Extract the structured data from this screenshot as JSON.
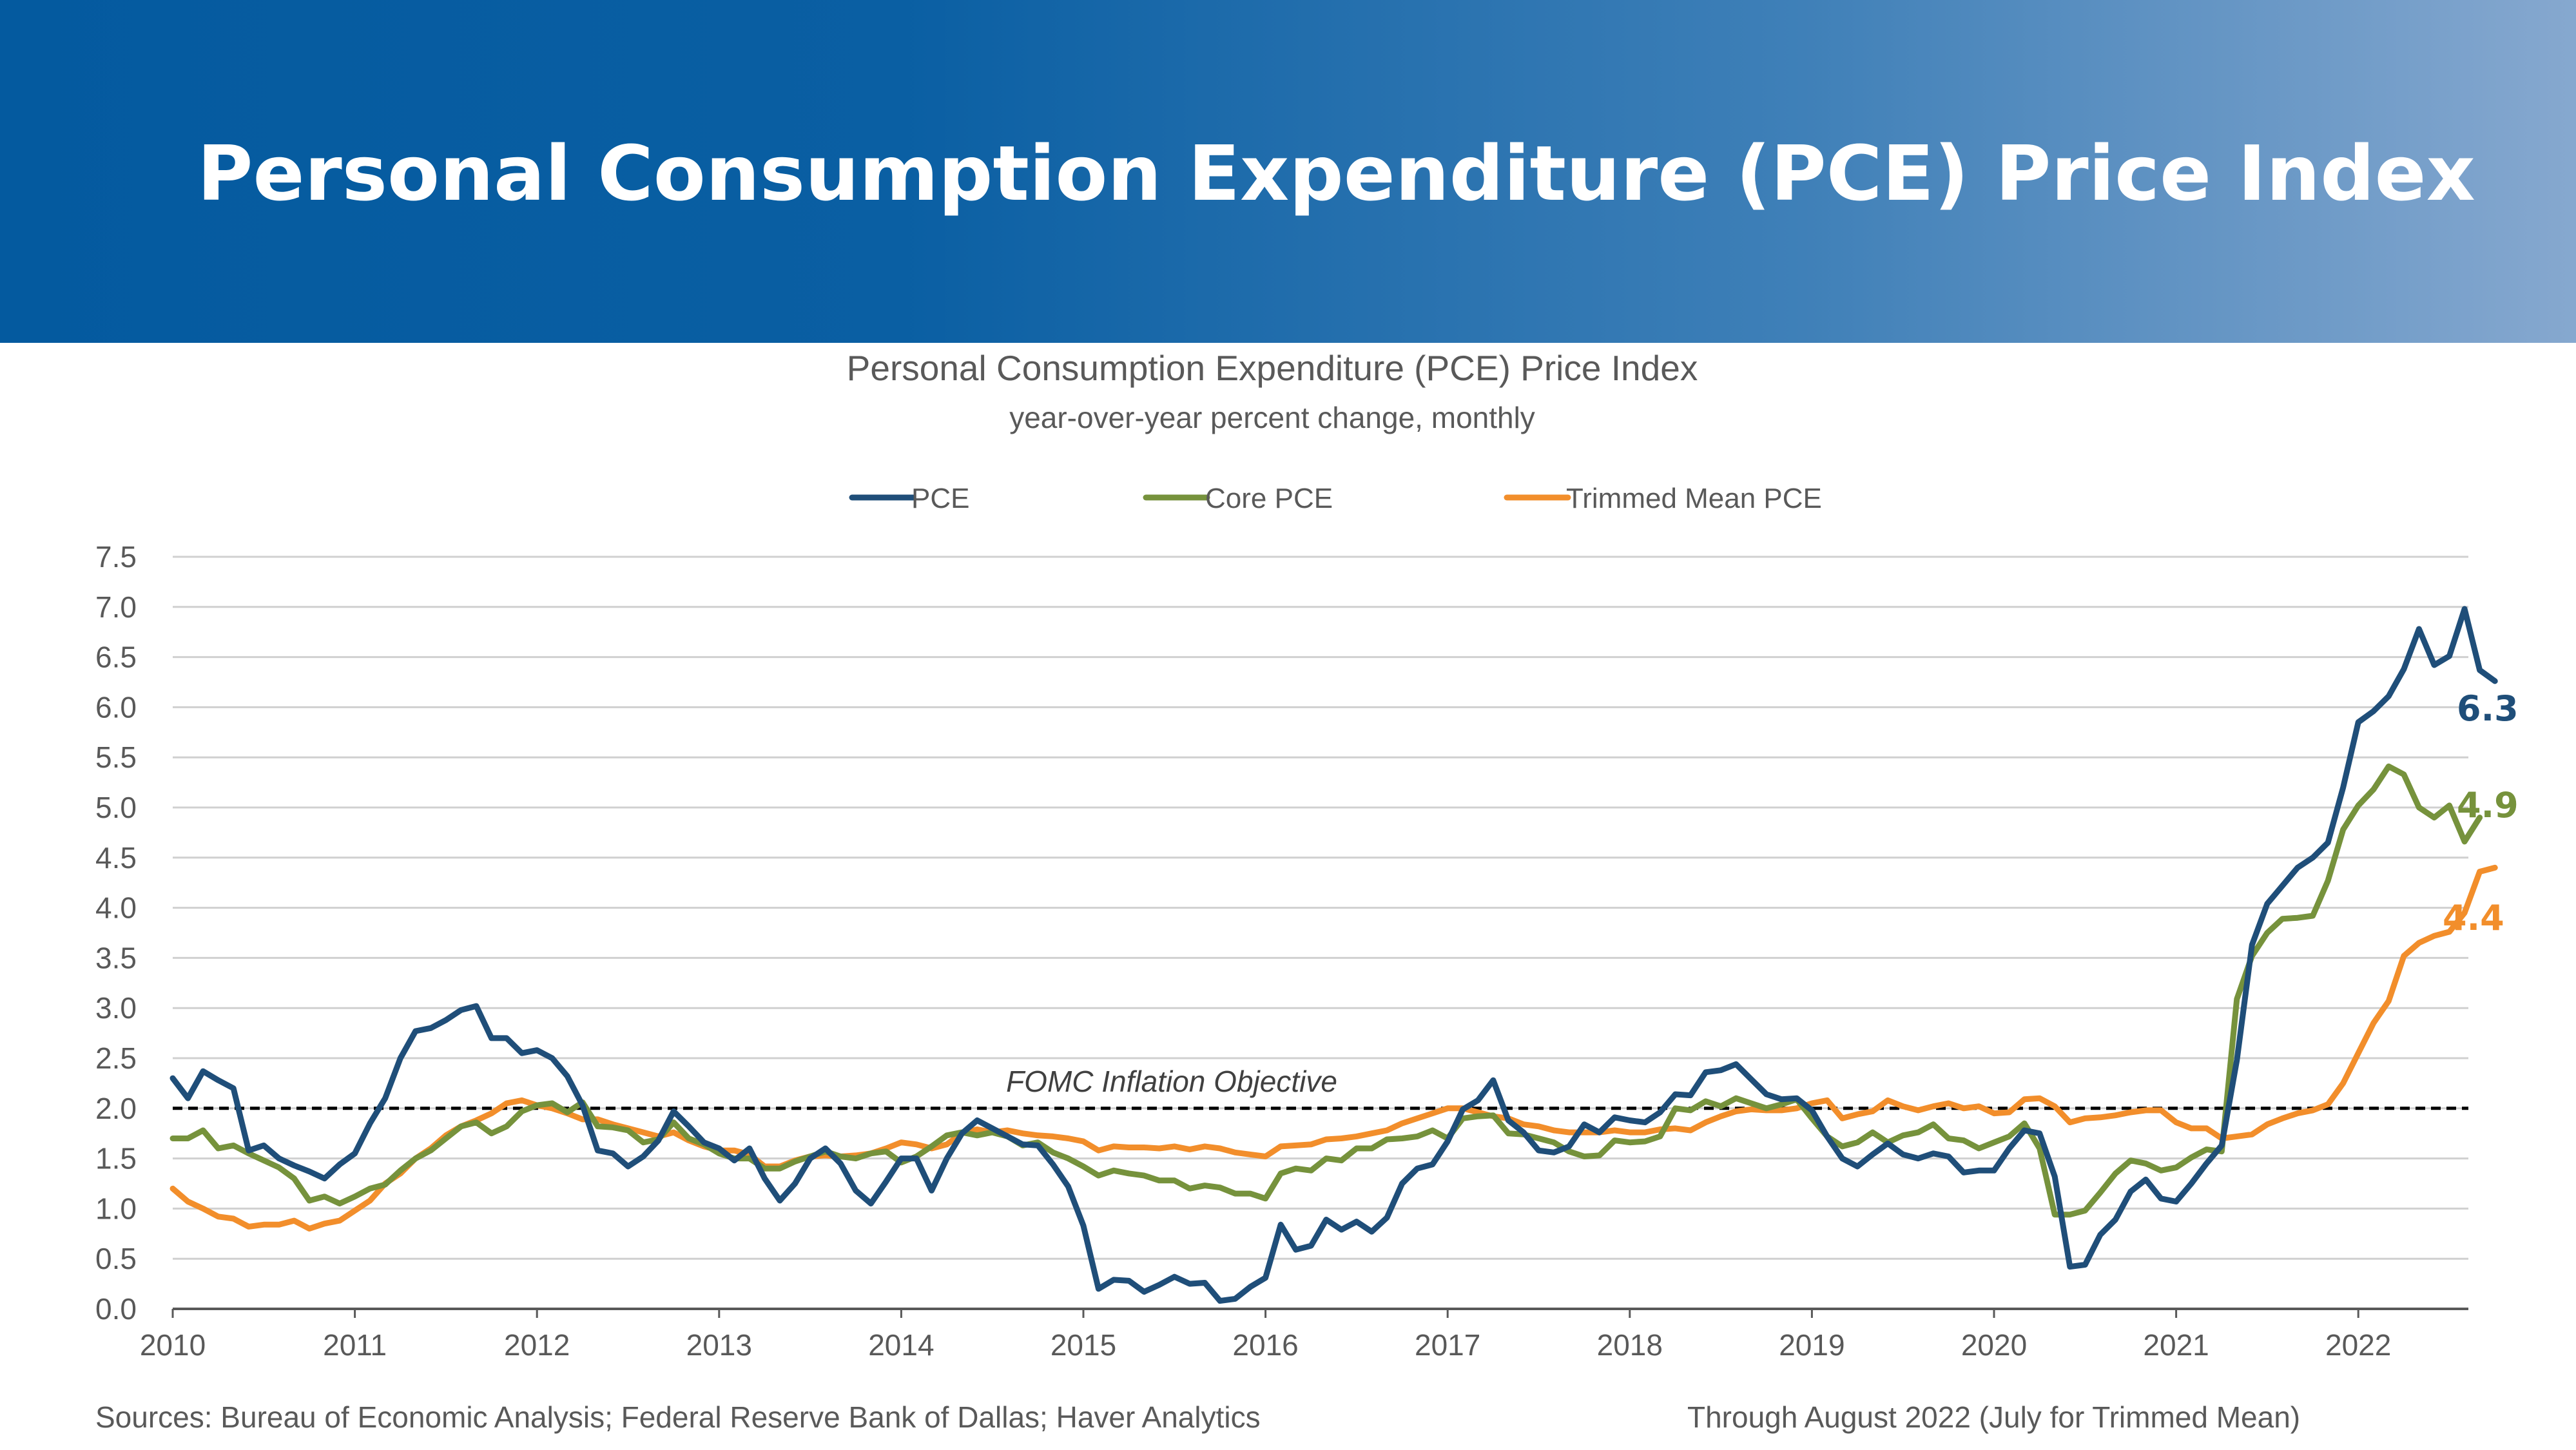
{
  "banner": {
    "title": "Personal Consumption Expenditure (PCE) Price Index"
  },
  "footer": {
    "sources": "Sources: Bureau of Economic Analysis; Federal Reserve Bank of Dallas; Haver Analytics",
    "through": "Through August 2022 (July for Trimmed Mean)"
  },
  "chart_data": {
    "type": "line",
    "title": "Personal Consumption Expenditure (PCE) Price Index",
    "subtitle": "year-over-year percent change, monthly",
    "xlabel": "",
    "ylabel": "",
    "ylim": [
      0,
      7.5
    ],
    "yticks": [
      "0.0",
      "0.5",
      "1.0",
      "1.5",
      "2.0",
      "2.5",
      "3.0",
      "3.5",
      "4.0",
      "4.5",
      "5.0",
      "5.5",
      "6.0",
      "6.5",
      "7.0",
      "7.5"
    ],
    "xticks": [
      "2010",
      "2011",
      "2012",
      "2013",
      "2014",
      "2015",
      "2016",
      "2017",
      "2018",
      "2019",
      "2020",
      "2021",
      "2022"
    ],
    "x_start": "2010-01",
    "grid": true,
    "legend_position": "top-center",
    "reference_line": {
      "value": 2.0,
      "label": "FOMC Inflation Objective"
    },
    "series": [
      {
        "name": "PCE",
        "color": "#1f4e79",
        "end_label": "6.3",
        "values": [
          2.3,
          2.1,
          2.37,
          2.28,
          2.2,
          1.58,
          1.63,
          1.5,
          1.43,
          1.37,
          1.3,
          1.44,
          1.55,
          1.85,
          2.1,
          2.5,
          2.77,
          2.8,
          2.88,
          2.98,
          3.02,
          2.7,
          2.7,
          2.55,
          2.58,
          2.5,
          2.32,
          2.03,
          1.58,
          1.55,
          1.42,
          1.52,
          1.68,
          1.97,
          1.82,
          1.66,
          1.6,
          1.48,
          1.6,
          1.3,
          1.08,
          1.25,
          1.5,
          1.6,
          1.45,
          1.18,
          1.05,
          1.27,
          1.5,
          1.5,
          1.18,
          1.5,
          1.75,
          1.88,
          1.8,
          1.72,
          1.64,
          1.63,
          1.44,
          1.22,
          0.83,
          0.2,
          0.29,
          0.28,
          0.17,
          0.24,
          0.32,
          0.25,
          0.26,
          0.08,
          0.1,
          0.22,
          0.31,
          0.84,
          0.59,
          0.63,
          0.89,
          0.79,
          0.87,
          0.77,
          0.91,
          1.25,
          1.4,
          1.44,
          1.67,
          1.99,
          2.08,
          2.28,
          1.88,
          1.76,
          1.58,
          1.56,
          1.62,
          1.84,
          1.76,
          1.91,
          1.88,
          1.86,
          1.96,
          2.14,
          2.13,
          2.36,
          2.38,
          2.44,
          2.29,
          2.14,
          2.09,
          2.1,
          1.98,
          1.72,
          1.5,
          1.42,
          1.54,
          1.65,
          1.54,
          1.5,
          1.55,
          1.52,
          1.36,
          1.38,
          1.38,
          1.6,
          1.78,
          1.75,
          1.32,
          0.42,
          0.44,
          0.74,
          0.89,
          1.17,
          1.29,
          1.1,
          1.07,
          1.25,
          1.45,
          1.63,
          2.48,
          3.63,
          4.04,
          4.22,
          4.4,
          4.5,
          4.65,
          5.2,
          5.85,
          5.96,
          6.11,
          6.38,
          6.78,
          6.42,
          6.51,
          6.98,
          6.37,
          6.26
        ]
      },
      {
        "name": "Core PCE",
        "color": "#76923c",
        "end_label": "4.9",
        "values": [
          1.7,
          1.7,
          1.78,
          1.6,
          1.63,
          1.55,
          1.48,
          1.41,
          1.3,
          1.08,
          1.12,
          1.05,
          1.12,
          1.2,
          1.24,
          1.38,
          1.5,
          1.58,
          1.7,
          1.82,
          1.86,
          1.75,
          1.82,
          1.97,
          2.03,
          2.05,
          1.96,
          2.06,
          1.82,
          1.81,
          1.78,
          1.66,
          1.69,
          1.86,
          1.7,
          1.64,
          1.55,
          1.5,
          1.5,
          1.4,
          1.4,
          1.47,
          1.52,
          1.57,
          1.52,
          1.5,
          1.55,
          1.57,
          1.46,
          1.52,
          1.62,
          1.73,
          1.76,
          1.73,
          1.76,
          1.72,
          1.63,
          1.66,
          1.56,
          1.5,
          1.42,
          1.33,
          1.38,
          1.35,
          1.33,
          1.28,
          1.28,
          1.2,
          1.23,
          1.21,
          1.15,
          1.15,
          1.1,
          1.35,
          1.4,
          1.38,
          1.5,
          1.48,
          1.6,
          1.6,
          1.69,
          1.7,
          1.72,
          1.78,
          1.7,
          1.9,
          1.92,
          1.93,
          1.75,
          1.74,
          1.7,
          1.66,
          1.57,
          1.52,
          1.53,
          1.68,
          1.66,
          1.67,
          1.72,
          2.0,
          1.98,
          2.07,
          2.02,
          2.1,
          2.05,
          2.0,
          2.04,
          2.09,
          1.9,
          1.72,
          1.62,
          1.66,
          1.76,
          1.66,
          1.73,
          1.76,
          1.84,
          1.7,
          1.68,
          1.6,
          1.66,
          1.72,
          1.85,
          1.6,
          0.94,
          0.94,
          0.98,
          1.16,
          1.35,
          1.48,
          1.45,
          1.38,
          1.41,
          1.51,
          1.59,
          1.57,
          3.09,
          3.52,
          3.75,
          3.89,
          3.9,
          3.92,
          4.27,
          4.78,
          5.02,
          5.18,
          5.41,
          5.33,
          5.0,
          4.9,
          5.02,
          4.66,
          4.9
        ]
      },
      {
        "name": "Trimmed Mean PCE",
        "color": "#f28e2b",
        "end_label": "4.4",
        "values": [
          1.2,
          1.07,
          1.0,
          0.92,
          0.9,
          0.82,
          0.84,
          0.84,
          0.88,
          0.8,
          0.85,
          0.88,
          0.98,
          1.08,
          1.25,
          1.35,
          1.5,
          1.6,
          1.73,
          1.82,
          1.88,
          1.95,
          2.05,
          2.08,
          2.03,
          2.0,
          1.95,
          1.89,
          1.89,
          1.84,
          1.8,
          1.76,
          1.72,
          1.76,
          1.68,
          1.62,
          1.58,
          1.58,
          1.54,
          1.42,
          1.42,
          1.48,
          1.52,
          1.53,
          1.52,
          1.53,
          1.55,
          1.6,
          1.66,
          1.64,
          1.6,
          1.64,
          1.75,
          1.79,
          1.76,
          1.78,
          1.75,
          1.73,
          1.72,
          1.7,
          1.67,
          1.58,
          1.62,
          1.61,
          1.61,
          1.6,
          1.62,
          1.59,
          1.62,
          1.6,
          1.56,
          1.54,
          1.52,
          1.62,
          1.63,
          1.64,
          1.69,
          1.7,
          1.72,
          1.75,
          1.78,
          1.85,
          1.9,
          1.95,
          2.0,
          2.0,
          1.96,
          1.92,
          1.9,
          1.84,
          1.82,
          1.78,
          1.76,
          1.76,
          1.76,
          1.78,
          1.76,
          1.76,
          1.79,
          1.8,
          1.78,
          1.86,
          1.92,
          1.97,
          1.99,
          1.98,
          1.98,
          2.0,
          2.05,
          2.08,
          1.9,
          1.94,
          1.97,
          2.08,
          2.02,
          1.98,
          2.02,
          2.05,
          2.0,
          2.02,
          1.95,
          1.96,
          2.09,
          2.1,
          2.02,
          1.86,
          1.9,
          1.91,
          1.93,
          1.96,
          1.98,
          1.98,
          1.86,
          1.8,
          1.8,
          1.7,
          1.72,
          1.74,
          1.84,
          1.9,
          1.95,
          1.98,
          2.04,
          2.25,
          2.55,
          2.85,
          3.07,
          3.52,
          3.65,
          3.72,
          3.76,
          3.95,
          4.36,
          4.4
        ]
      }
    ]
  }
}
